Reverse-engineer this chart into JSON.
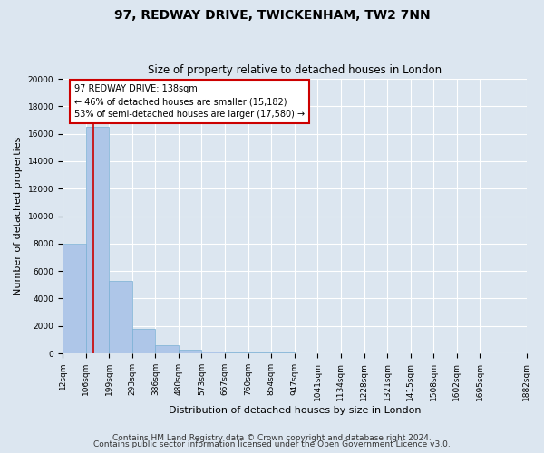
{
  "title": "97, REDWAY DRIVE, TWICKENHAM, TW2 7NN",
  "subtitle": "Size of property relative to detached houses in London",
  "xlabel": "Distribution of detached houses by size in London",
  "ylabel": "Number of detached properties",
  "bin_edges": [
    12,
    106,
    199,
    293,
    386,
    480,
    573,
    667,
    760,
    854,
    947,
    1041,
    1134,
    1228,
    1321,
    1415,
    1508,
    1602,
    1695,
    1882
  ],
  "bar_heights": [
    8000,
    16500,
    5300,
    1800,
    600,
    300,
    150,
    100,
    55,
    50,
    30,
    25,
    15,
    12,
    10,
    8,
    8,
    8,
    8
  ],
  "bar_color": "#aec6e8",
  "bar_edge_color": "#7ab0d4",
  "red_line_x": 138,
  "annotation_title": "97 REDWAY DRIVE: 138sqm",
  "annotation_line1": "← 46% of detached houses are smaller (15,182)",
  "annotation_line2": "53% of semi-detached houses are larger (17,580) →",
  "annotation_box_facecolor": "#ffffff",
  "annotation_box_edgecolor": "#cc0000",
  "ylim": [
    0,
    20000
  ],
  "yticks": [
    0,
    2000,
    4000,
    6000,
    8000,
    10000,
    12000,
    14000,
    16000,
    18000,
    20000
  ],
  "footer1": "Contains HM Land Registry data © Crown copyright and database right 2024.",
  "footer2": "Contains public sector information licensed under the Open Government Licence v3.0.",
  "bg_color": "#dce6f0",
  "plot_bg_color": "#dce6f0",
  "grid_color": "#ffffff",
  "title_fontsize": 10,
  "subtitle_fontsize": 8.5,
  "axis_label_fontsize": 8,
  "tick_fontsize": 6.5,
  "annotation_fontsize": 7,
  "footer_fontsize": 6.5
}
